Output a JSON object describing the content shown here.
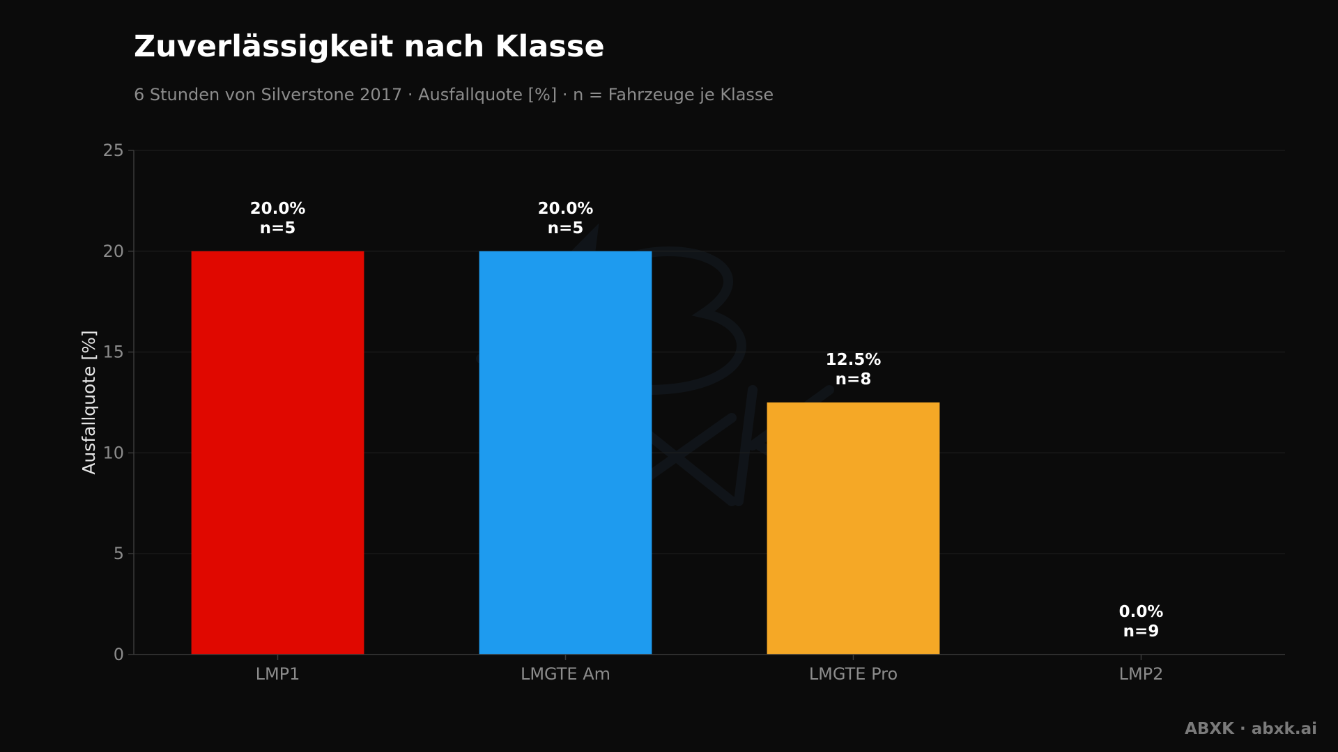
{
  "title": "Zuverlässigkeit nach Klasse",
  "subtitle": "6 Stunden von Silverstone 2017 · Ausfallquote [%] · n = Fahrzeuge je Klasse",
  "footer": "ABXK · abxk.ai",
  "watermark": "ABXK",
  "colors": {
    "background": "#0b0b0b",
    "grid": "#222222",
    "axis": "#3a3a3a"
  },
  "chart_data": {
    "type": "bar",
    "title": "Zuverlässigkeit nach Klasse",
    "subtitle": "6 Stunden von Silverstone 2017 · Ausfallquote [%] · n = Fahrzeuge je Klasse",
    "xlabel": "",
    "ylabel": "Ausfallquote [%]",
    "ylim": [
      0,
      25
    ],
    "yticks": [
      0,
      5,
      10,
      15,
      20,
      25
    ],
    "grid": true,
    "categories": [
      "LMP1",
      "LMGTE Am",
      "LMGTE Pro",
      "LMP2"
    ],
    "values": [
      20.0,
      20.0,
      12.5,
      0.0
    ],
    "n": [
      5,
      5,
      8,
      9
    ],
    "value_labels": [
      "20.0%",
      "20.0%",
      "12.5%",
      "0.0%"
    ],
    "n_labels": [
      "n=5",
      "n=5",
      "n=8",
      "n=9"
    ],
    "colors": [
      "#e00800",
      "#1e9bef",
      "#f5a826",
      "#8a8a8a"
    ]
  }
}
